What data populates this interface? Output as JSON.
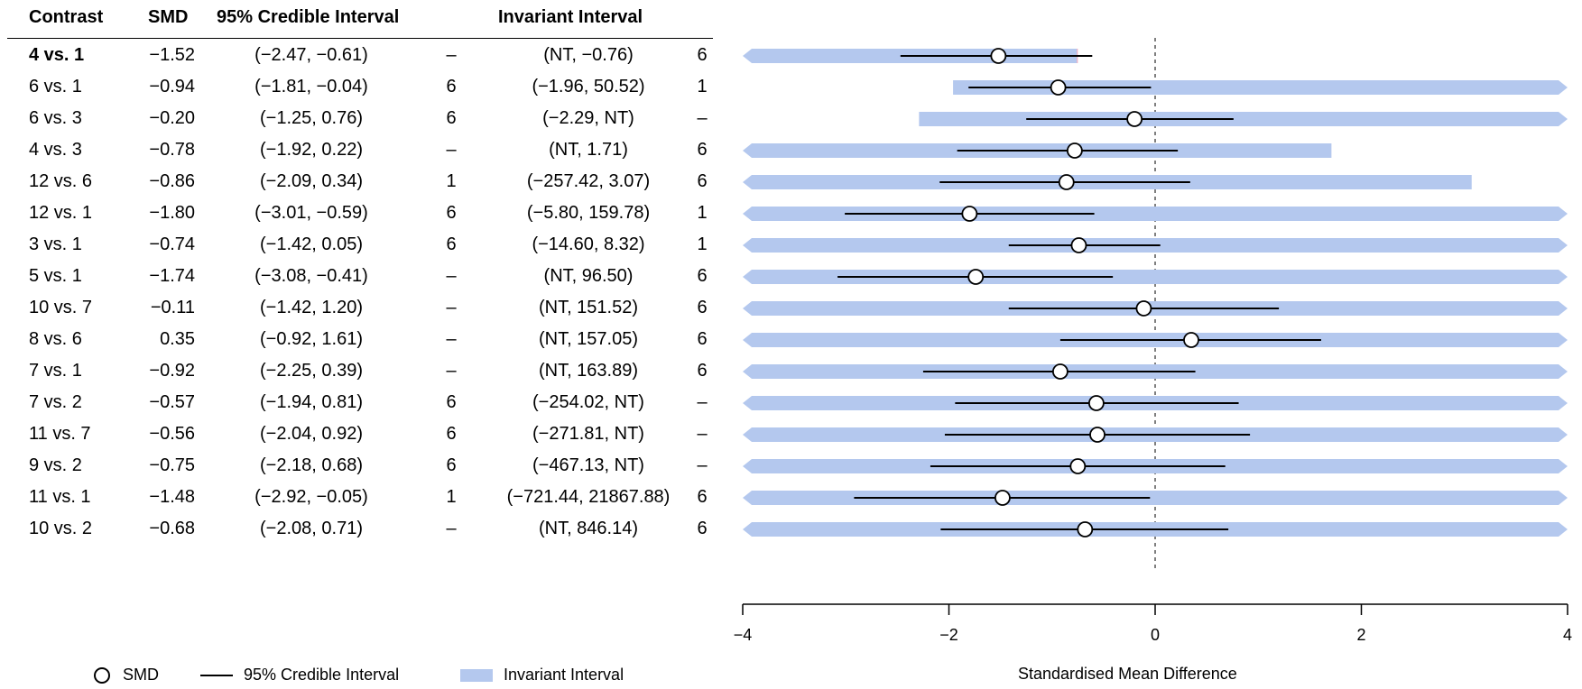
{
  "headers": {
    "contrast": "Contrast",
    "smd": "SMD",
    "ci": "95% Credible Interval",
    "ii": "Invariant Interval"
  },
  "legend": {
    "smd": "SMD",
    "ci": "95% Credible Interval",
    "ii": "Invariant Interval"
  },
  "colors": {
    "invariant": "#b4c8ee",
    "highlight": "#e8a8c0",
    "line": "#000000"
  },
  "chart_data": {
    "type": "forest",
    "xlabel": "Standardised Mean Difference",
    "xlim": [
      -4,
      4
    ],
    "xticks": [
      "−4",
      "−2",
      "0",
      "2",
      "4"
    ],
    "reference_line": 0,
    "rows": [
      {
        "contrast": "4 vs. 1",
        "smd": -1.52,
        "smd_text": "−1.52",
        "ci": [
          -2.47,
          -0.61
        ],
        "ci_text": "(−2.47, −0.61)",
        "lower_tag": "–",
        "ii": [
          null,
          -0.76
        ],
        "ii_text": "(NT, −0.76)",
        "upper_tag": "6"
      },
      {
        "contrast": "6 vs. 1",
        "smd": -0.94,
        "smd_text": "−0.94",
        "ci": [
          -1.81,
          -0.04
        ],
        "ci_text": "(−1.81, −0.04)",
        "lower_tag": "6",
        "ii": [
          -1.96,
          50.52
        ],
        "ii_text": "(−1.96, 50.52)",
        "upper_tag": "1"
      },
      {
        "contrast": "6 vs. 3",
        "smd": -0.2,
        "smd_text": "−0.20",
        "ci": [
          -1.25,
          0.76
        ],
        "ci_text": "(−1.25, 0.76)",
        "lower_tag": "6",
        "ii": [
          -2.29,
          null
        ],
        "ii_text": "(−2.29, NT)",
        "upper_tag": "–"
      },
      {
        "contrast": "4 vs. 3",
        "smd": -0.78,
        "smd_text": "−0.78",
        "ci": [
          -1.92,
          0.22
        ],
        "ci_text": "(−1.92, 0.22)",
        "lower_tag": "–",
        "ii": [
          null,
          1.71
        ],
        "ii_text": "(NT, 1.71)",
        "upper_tag": "6"
      },
      {
        "contrast": "12 vs. 6",
        "smd": -0.86,
        "smd_text": "−0.86",
        "ci": [
          -2.09,
          0.34
        ],
        "ci_text": "(−2.09, 0.34)",
        "lower_tag": "1",
        "ii": [
          -257.42,
          3.07
        ],
        "ii_text": "(−257.42, 3.07)",
        "upper_tag": "6"
      },
      {
        "contrast": "12 vs. 1",
        "smd": -1.8,
        "smd_text": "−1.80",
        "ci": [
          -3.01,
          -0.59
        ],
        "ci_text": "(−3.01, −0.59)",
        "lower_tag": "6",
        "ii": [
          -5.8,
          159.78
        ],
        "ii_text": "(−5.80, 159.78)",
        "upper_tag": "1"
      },
      {
        "contrast": "3 vs. 1",
        "smd": -0.74,
        "smd_text": "−0.74",
        "ci": [
          -1.42,
          0.05
        ],
        "ci_text": "(−1.42, 0.05)",
        "lower_tag": "6",
        "ii": [
          -14.6,
          8.32
        ],
        "ii_text": "(−14.60, 8.32)",
        "upper_tag": "1"
      },
      {
        "contrast": "5 vs. 1",
        "smd": -1.74,
        "smd_text": "−1.74",
        "ci": [
          -3.08,
          -0.41
        ],
        "ci_text": "(−3.08, −0.41)",
        "lower_tag": "–",
        "ii": [
          null,
          96.5
        ],
        "ii_text": "(NT, 96.50)",
        "upper_tag": "6"
      },
      {
        "contrast": "10 vs. 7",
        "smd": -0.11,
        "smd_text": "−0.11",
        "ci": [
          -1.42,
          1.2
        ],
        "ci_text": "(−1.42, 1.20)",
        "lower_tag": "–",
        "ii": [
          null,
          151.52
        ],
        "ii_text": "(NT, 151.52)",
        "upper_tag": "6"
      },
      {
        "contrast": "8 vs. 6",
        "smd": 0.35,
        "smd_text": "0.35",
        "ci": [
          -0.92,
          1.61
        ],
        "ci_text": "(−0.92, 1.61)",
        "lower_tag": "–",
        "ii": [
          null,
          157.05
        ],
        "ii_text": "(NT, 157.05)",
        "upper_tag": "6"
      },
      {
        "contrast": "7 vs. 1",
        "smd": -0.92,
        "smd_text": "−0.92",
        "ci": [
          -2.25,
          0.39
        ],
        "ci_text": "(−2.25, 0.39)",
        "lower_tag": "–",
        "ii": [
          null,
          163.89
        ],
        "ii_text": "(NT, 163.89)",
        "upper_tag": "6"
      },
      {
        "contrast": "7 vs. 2",
        "smd": -0.57,
        "smd_text": "−0.57",
        "ci": [
          -1.94,
          0.81
        ],
        "ci_text": "(−1.94, 0.81)",
        "lower_tag": "6",
        "ii": [
          -254.02,
          null
        ],
        "ii_text": "(−254.02, NT)",
        "upper_tag": "–"
      },
      {
        "contrast": "11 vs. 7",
        "smd": -0.56,
        "smd_text": "−0.56",
        "ci": [
          -2.04,
          0.92
        ],
        "ci_text": "(−2.04, 0.92)",
        "lower_tag": "6",
        "ii": [
          -271.81,
          null
        ],
        "ii_text": "(−271.81, NT)",
        "upper_tag": "–"
      },
      {
        "contrast": "9 vs. 2",
        "smd": -0.75,
        "smd_text": "−0.75",
        "ci": [
          -2.18,
          0.68
        ],
        "ci_text": "(−2.18, 0.68)",
        "lower_tag": "6",
        "ii": [
          -467.13,
          null
        ],
        "ii_text": "(−467.13, NT)",
        "upper_tag": "–"
      },
      {
        "contrast": "11 vs. 1",
        "smd": -1.48,
        "smd_text": "−1.48",
        "ci": [
          -2.92,
          -0.05
        ],
        "ci_text": "(−2.92, −0.05)",
        "lower_tag": "1",
        "ii": [
          -721.44,
          21867.88
        ],
        "ii_text": "(−721.44, 21867.88)",
        "upper_tag": "6"
      },
      {
        "contrast": "10 vs. 2",
        "smd": -0.68,
        "smd_text": "−0.68",
        "ci": [
          -2.08,
          0.71
        ],
        "ci_text": "(−2.08, 0.71)",
        "lower_tag": "–",
        "ii": [
          null,
          846.14
        ],
        "ii_text": "(NT, 846.14)",
        "upper_tag": "6"
      }
    ]
  }
}
